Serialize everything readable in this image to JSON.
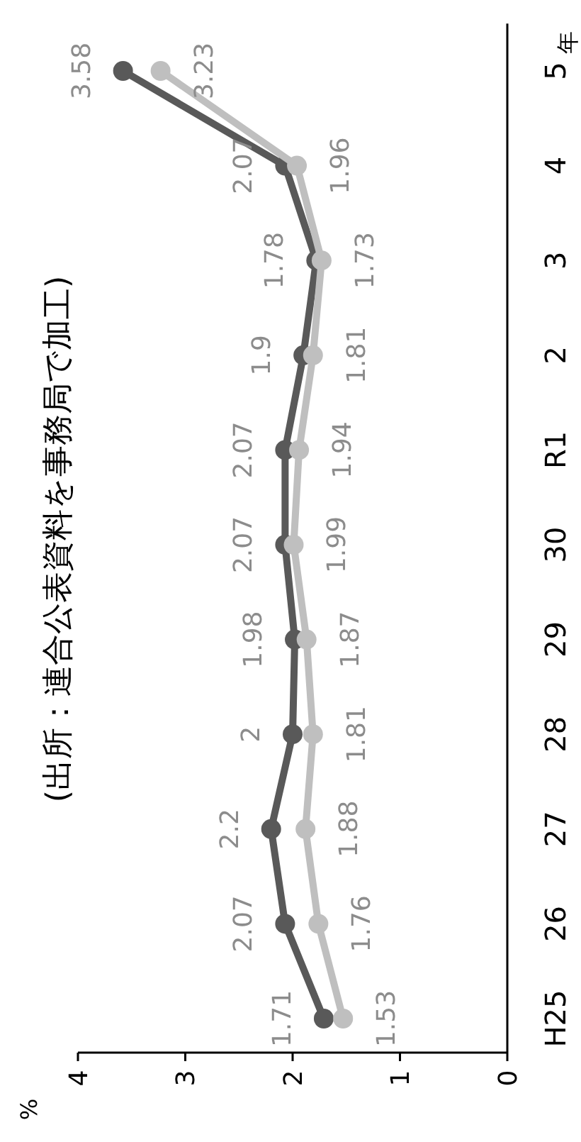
{
  "chart_data": {
    "type": "line",
    "orientation": "horizontal",
    "categories": [
      "5",
      "4",
      "3",
      "2",
      "R1",
      "30",
      "29",
      "28",
      "27",
      "26",
      "H25"
    ],
    "series": [
      {
        "color": "#595959",
        "values": [
          3.58,
          2.07,
          1.78,
          1.9,
          2.07,
          2.07,
          1.98,
          2,
          2.2,
          2.07,
          1.71
        ]
      },
      {
        "color": "#bfbfbf",
        "values": [
          3.23,
          1.96,
          1.73,
          1.81,
          1.94,
          1.99,
          1.87,
          1.81,
          1.88,
          1.76,
          1.53
        ]
      }
    ],
    "xlim": [
      4,
      0
    ],
    "xticks": [
      4,
      3,
      2,
      1,
      0
    ],
    "ylabel": "年",
    "annotations": [
      "(出所：連合公表資料を事務局で加工)",
      "%"
    ],
    "data_labels": true,
    "marker": "circle",
    "grid": false
  }
}
